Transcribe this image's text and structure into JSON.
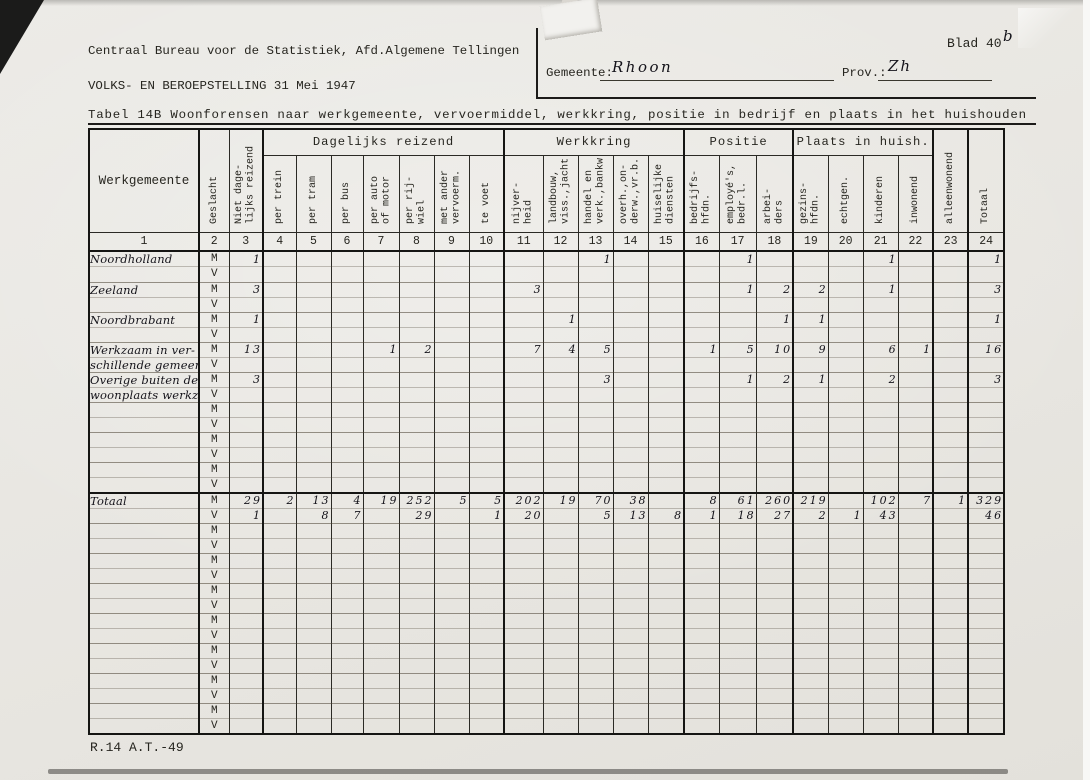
{
  "page": {
    "org_line": "Centraal Bureau voor de Statistiek, Afd.Algemene Tellingen",
    "census_line": "VOLKS- EN BEROEPSTELLING 31 Mei 1947",
    "table_title": "Tabel 14B Woonforensen naar werkgemeente, vervoermiddel, werkkring, positie in bedrijf en plaats in het huishouden",
    "blad_label": "Blad 40",
    "blad_suffix": "b",
    "gemeente_label": "Gemeente:",
    "gemeente_value": "Rhoon",
    "prov_label": "Prov.:",
    "prov_value": "Zh",
    "footer": "R.14 A.T.-49"
  },
  "table": {
    "groups": [
      {
        "label": "Dagelijks reizend"
      },
      {
        "label": "Werkkring"
      },
      {
        "label": "Positie"
      },
      {
        "label": "Plaats in huish."
      }
    ],
    "cols": [
      {
        "n": "1",
        "label": "Werkgemeente"
      },
      {
        "n": "2",
        "label": "Geslacht"
      },
      {
        "n": "3",
        "label": "Niet dage-\nlijks reizend"
      },
      {
        "n": "4",
        "label": "per trein"
      },
      {
        "n": "5",
        "label": "per tram"
      },
      {
        "n": "6",
        "label": "per bus"
      },
      {
        "n": "7",
        "label": "per auto\nof motor"
      },
      {
        "n": "8",
        "label": "per rij-\nwiel"
      },
      {
        "n": "9",
        "label": "met ander\nvervoerm."
      },
      {
        "n": "10",
        "label": "te voet"
      },
      {
        "n": "11",
        "label": "nijver-\nheid"
      },
      {
        "n": "12",
        "label": "landbouw,\nviss.,jacht"
      },
      {
        "n": "13",
        "label": "handel en\nverk.,bankw"
      },
      {
        "n": "14",
        "label": "overh.,on-\nderw.,vr.b."
      },
      {
        "n": "15",
        "label": "huiselijke\ndiensten"
      },
      {
        "n": "16",
        "label": "bedrijfs-\nhfdn."
      },
      {
        "n": "17",
        "label": "employé's,\nbedr.l."
      },
      {
        "n": "18",
        "label": "arbei-\nders"
      },
      {
        "n": "19",
        "label": "gezins-\nhfdn."
      },
      {
        "n": "20",
        "label": "echtgen."
      },
      {
        "n": "21",
        "label": "kinderen"
      },
      {
        "n": "22",
        "label": "inwonend"
      },
      {
        "n": "23",
        "label": "alleenwonend"
      },
      {
        "n": "24",
        "label": "Totaal"
      }
    ],
    "rows": [
      {
        "label": "Noordholland",
        "sex": "M",
        "cells": {
          "c3": "1",
          "c13": "1",
          "c17": "1",
          "c21": "1",
          "c24": "1"
        }
      },
      {
        "label": "",
        "sex": "V",
        "cells": {}
      },
      {
        "label": "Zeeland",
        "sex": "M",
        "cells": {
          "c3": "3",
          "c11": "3",
          "c17": "1",
          "c18": "2",
          "c19": "2",
          "c21": "1",
          "c24": "3"
        }
      },
      {
        "label": "",
        "sex": "V",
        "cells": {}
      },
      {
        "label": "Noordbrabant",
        "sex": "M",
        "cells": {
          "c3": "1",
          "c12": "1",
          "c18": "1",
          "c19": "1",
          "c24": "1"
        }
      },
      {
        "label": "",
        "sex": "V",
        "cells": {}
      },
      {
        "label": "Werkzaam in ver-",
        "sex": "M",
        "cells": {
          "c3": "13",
          "c7": "1",
          "c8": "2",
          "c11": "7",
          "c12": "4",
          "c13": "5",
          "c16": "1",
          "c17": "5",
          "c18": "10",
          "c19": "9",
          "c21": "6",
          "c22": "1",
          "c24": "16"
        }
      },
      {
        "label": "schillende gemeenten",
        "sex": "V",
        "cells": {}
      },
      {
        "label": "Overige buiten de",
        "sex": "M",
        "cells": {
          "c3": "3",
          "c13": "3",
          "c17": "1",
          "c18": "2",
          "c19": "1",
          "c21": "2",
          "c24": "3"
        }
      },
      {
        "label": "woonplaats werkzaam",
        "sex": "V",
        "cells": {}
      },
      {
        "label": "",
        "sex": "M",
        "cells": {}
      },
      {
        "label": "",
        "sex": "V",
        "cells": {}
      },
      {
        "label": "",
        "sex": "M",
        "cells": {}
      },
      {
        "label": "",
        "sex": "V",
        "cells": {}
      },
      {
        "label": "",
        "sex": "M",
        "cells": {}
      },
      {
        "label": "",
        "sex": "V",
        "cells": {}
      },
      {
        "label": "Totaal",
        "sex": "M",
        "total": true,
        "cells": {
          "c3": "29",
          "c4": "2",
          "c5": "13",
          "c6": "4",
          "c7": "19",
          "c8": "252",
          "c9": "5",
          "c10": "5",
          "c11": "202",
          "c12": "19",
          "c13": "70",
          "c14": "38",
          "c16": "8",
          "c17": "61",
          "c18": "260",
          "c19": "219",
          "c21": "102",
          "c22": "7",
          "c23": "1",
          "c24": "329"
        }
      },
      {
        "label": "",
        "sex": "V",
        "cells": {
          "c3": "1",
          "c5": "8",
          "c6": "7",
          "c8": "29",
          "c10": "1",
          "c11": "20",
          "c13": "5",
          "c14": "13",
          "c15": "8",
          "c16": "1",
          "c17": "18",
          "c18": "27",
          "c19": "2",
          "c20": "1",
          "c21": "43",
          "c24": "46"
        }
      },
      {
        "label": "",
        "sex": "M",
        "cells": {}
      },
      {
        "label": "",
        "sex": "V",
        "cells": {}
      },
      {
        "label": "",
        "sex": "M",
        "cells": {}
      },
      {
        "label": "",
        "sex": "V",
        "cells": {}
      },
      {
        "label": "",
        "sex": "M",
        "cells": {}
      },
      {
        "label": "",
        "sex": "V",
        "cells": {}
      },
      {
        "label": "",
        "sex": "M",
        "cells": {}
      },
      {
        "label": "",
        "sex": "V",
        "cells": {}
      },
      {
        "label": "",
        "sex": "M",
        "cells": {}
      },
      {
        "label": "",
        "sex": "V",
        "cells": {}
      },
      {
        "label": "",
        "sex": "M",
        "cells": {}
      },
      {
        "label": "",
        "sex": "V",
        "cells": {}
      },
      {
        "label": "",
        "sex": "M",
        "cells": {}
      },
      {
        "label": "",
        "sex": "V",
        "cells": {}
      }
    ]
  }
}
